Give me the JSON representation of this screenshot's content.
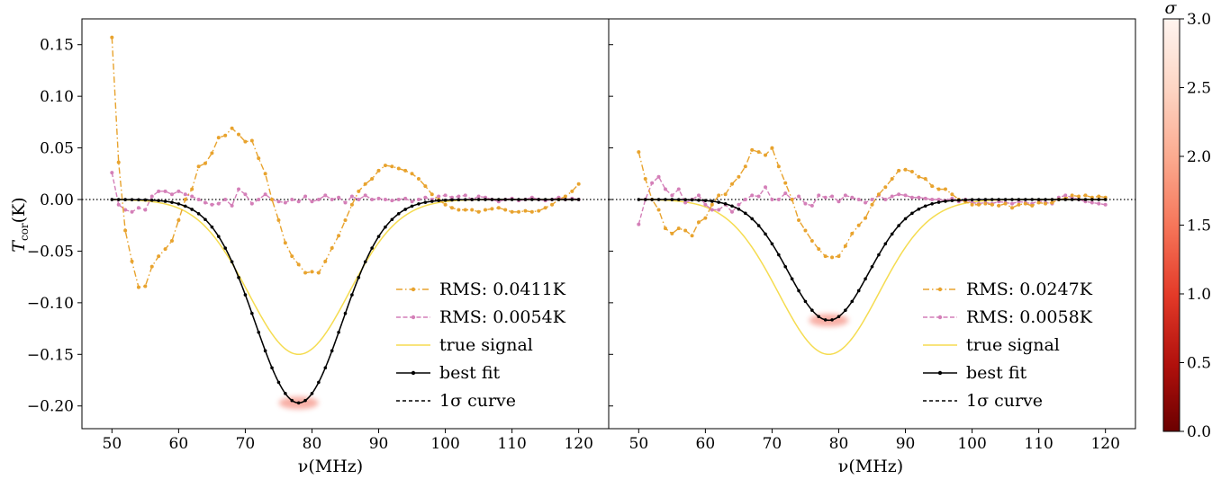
{
  "chart_data": {
    "type": "line",
    "shared": {
      "xlabel": "ν(MHz)",
      "ylabel_main": "T",
      "ylabel_sub": "cor",
      "ylabel_unit": "(K)",
      "xlim": [
        45.5,
        124.5
      ],
      "ylim": [
        -0.222,
        0.175
      ],
      "x_ticks": [
        50,
        60,
        70,
        80,
        90,
        100,
        110,
        120
      ],
      "y_ticks": [
        0.15,
        0.1,
        0.05,
        0.0,
        -0.05,
        -0.1,
        -0.15,
        -0.2
      ],
      "y_tick_labels": [
        "0.15",
        "0.10",
        "0.05",
        "0.00",
        "−0.05",
        "−0.10",
        "−0.15",
        "−0.20"
      ],
      "colorbar": {
        "label": "σ",
        "range": [
          0.0,
          3.0
        ],
        "ticks": [
          0.0,
          0.5,
          1.0,
          1.5,
          2.0,
          2.5,
          3.0
        ],
        "tick_labels": [
          "0.0",
          "0.5",
          "1.0",
          "1.5",
          "2.0",
          "2.5",
          "3.0"
        ],
        "colors": [
          "#6b0000",
          "#c01a10",
          "#ee4a33",
          "#f7866a",
          "#fcbba1",
          "#fde7dc",
          "#fff5f0"
        ]
      },
      "colors": {
        "series_a": "#e8a32e",
        "series_b": "#d47fb8",
        "true_signal": "#f5dc50",
        "best_fit": "#000000",
        "sigma_curve": "#000000",
        "band": "#f26d5b"
      }
    },
    "panels": [
      {
        "legend_position": "lower-right",
        "legend": [
          {
            "label": "RMS: 0.0411K",
            "style": "dashdot-dot",
            "color": "#e8a32e"
          },
          {
            "label": "RMS: 0.0054K",
            "style": "dash-dot",
            "color": "#d47fb8"
          },
          {
            "label": "true signal",
            "style": "solid",
            "color": "#f5dc50"
          },
          {
            "label": "best fit",
            "style": "solid-dot",
            "color": "#000000"
          },
          {
            "label": "1σ curve",
            "style": "dashed",
            "color": "#000000"
          }
        ],
        "true_signal": {
          "amplitude": -0.15,
          "center": 78.0,
          "width": 7.5
        },
        "best_fit": {
          "amplitude": -0.197,
          "center": 78.0,
          "width": 6.5
        },
        "series_a": {
          "x": [
            50,
            51,
            52,
            53,
            54,
            55,
            56,
            57,
            58,
            59,
            60,
            61,
            62,
            63,
            64,
            65,
            66,
            67,
            68,
            69,
            70,
            71,
            72,
            73,
            74,
            75,
            76,
            77,
            78,
            79,
            80,
            81,
            82,
            83,
            84,
            85,
            86,
            87,
            88,
            89,
            90,
            91,
            92,
            93,
            94,
            95,
            96,
            97,
            98,
            99,
            100,
            101,
            102,
            103,
            104,
            105,
            106,
            107,
            108,
            109,
            110,
            111,
            112,
            113,
            114,
            115,
            116,
            117,
            118,
            119,
            120
          ],
          "y": [
            0.157,
            0.036,
            -0.03,
            -0.06,
            -0.085,
            -0.084,
            -0.065,
            -0.055,
            -0.048,
            -0.04,
            -0.02,
            0.0,
            0.01,
            0.032,
            0.035,
            0.045,
            0.06,
            0.062,
            0.069,
            0.063,
            0.056,
            0.057,
            0.04,
            0.025,
            0.0,
            -0.02,
            -0.042,
            -0.055,
            -0.063,
            -0.071,
            -0.07,
            -0.071,
            -0.06,
            -0.047,
            -0.035,
            -0.02,
            -0.005,
            0.008,
            0.015,
            0.02,
            0.028,
            0.033,
            0.032,
            0.03,
            0.028,
            0.025,
            0.02,
            0.013,
            0.005,
            0.0,
            -0.005,
            -0.008,
            -0.01,
            -0.01,
            -0.01,
            -0.012,
            -0.01,
            -0.009,
            -0.008,
            -0.01,
            -0.012,
            -0.012,
            -0.011,
            -0.012,
            -0.011,
            -0.008,
            -0.005,
            0.0,
            0.003,
            0.008,
            0.015
          ]
        },
        "series_b": {
          "x": [
            50,
            51,
            52,
            53,
            54,
            55,
            56,
            57,
            58,
            59,
            60,
            61,
            62,
            63,
            64,
            65,
            66,
            67,
            68,
            69,
            70,
            71,
            72,
            73,
            74,
            75,
            76,
            77,
            78,
            79,
            80,
            81,
            82,
            83,
            84,
            85,
            86,
            87,
            88,
            89,
            90,
            91,
            92,
            93,
            94,
            95,
            96,
            97,
            98,
            99,
            100,
            101,
            102,
            103,
            104,
            105,
            106,
            107,
            108,
            109,
            110,
            111,
            112,
            113,
            114,
            115,
            116,
            117,
            118,
            119,
            120
          ],
          "y": [
            0.026,
            -0.005,
            -0.01,
            -0.012,
            -0.008,
            -0.01,
            0.003,
            0.008,
            0.008,
            0.005,
            0.008,
            0.005,
            0.003,
            0.0,
            -0.003,
            -0.005,
            -0.004,
            0.0,
            -0.006,
            0.01,
            0.005,
            -0.004,
            0.0,
            0.005,
            0.0,
            -0.002,
            -0.003,
            0.0,
            -0.002,
            0.003,
            -0.002,
            0.0,
            0.004,
            0.0,
            0.002,
            -0.003,
            0.003,
            0.0,
            0.004,
            0.0,
            0.001,
            0.0,
            -0.001,
            0.0,
            0.001,
            -0.002,
            0.0,
            0.002,
            0.0,
            0.003,
            0.004,
            0.002,
            0.003,
            0.004,
            0.0,
            0.003,
            0.002,
            0.0,
            -0.002,
            0.0,
            0.001,
            -0.001,
            0.0,
            0.002,
            0.0,
            -0.001,
            0.0,
            0.002,
            0.0,
            0.001,
            0.0
          ]
        }
      },
      {
        "legend_position": "lower-right",
        "legend": [
          {
            "label": "RMS: 0.0247K",
            "style": "dashdot-dot",
            "color": "#e8a32e"
          },
          {
            "label": "RMS: 0.0058K",
            "style": "dash-dot",
            "color": "#d47fb8"
          },
          {
            "label": "true signal",
            "style": "solid",
            "color": "#f5dc50"
          },
          {
            "label": "best fit",
            "style": "solid-dot",
            "color": "#000000"
          },
          {
            "label": "1σ curve",
            "style": "dashed",
            "color": "#000000"
          }
        ],
        "true_signal": {
          "amplitude": -0.15,
          "center": 78.5,
          "width": 7.5
        },
        "best_fit": {
          "amplitude": -0.117,
          "center": 78.5,
          "width": 6.0
        },
        "series_a": {
          "x": [
            50,
            51,
            52,
            53,
            54,
            55,
            56,
            57,
            58,
            59,
            60,
            61,
            62,
            63,
            64,
            65,
            66,
            67,
            68,
            69,
            70,
            71,
            72,
            73,
            74,
            75,
            76,
            77,
            78,
            79,
            80,
            81,
            82,
            83,
            84,
            85,
            86,
            87,
            88,
            89,
            90,
            91,
            92,
            93,
            94,
            95,
            96,
            97,
            98,
            99,
            100,
            101,
            102,
            103,
            104,
            105,
            106,
            107,
            108,
            109,
            110,
            111,
            112,
            113,
            114,
            115,
            116,
            117,
            118,
            119,
            120
          ],
          "y": [
            0.046,
            0.02,
            0.0,
            -0.01,
            -0.028,
            -0.033,
            -0.028,
            -0.03,
            -0.035,
            -0.022,
            -0.018,
            -0.005,
            0.004,
            0.005,
            0.015,
            0.022,
            0.032,
            0.048,
            0.046,
            0.043,
            0.05,
            0.032,
            0.016,
            0.0,
            -0.02,
            -0.03,
            -0.04,
            -0.048,
            -0.055,
            -0.056,
            -0.055,
            -0.045,
            -0.033,
            -0.025,
            -0.018,
            -0.005,
            0.005,
            0.012,
            0.02,
            0.028,
            0.029,
            0.027,
            0.022,
            0.02,
            0.013,
            0.01,
            0.01,
            0.005,
            0.0,
            -0.002,
            -0.005,
            -0.005,
            -0.004,
            -0.005,
            -0.006,
            -0.004,
            -0.008,
            -0.005,
            -0.004,
            -0.006,
            -0.003,
            -0.004,
            -0.003,
            0.0,
            0.001,
            0.004,
            0.003,
            0.004,
            0.002,
            0.003,
            0.002
          ]
        },
        "series_b": {
          "x": [
            50,
            51,
            52,
            53,
            54,
            55,
            56,
            57,
            58,
            59,
            60,
            61,
            62,
            63,
            64,
            65,
            66,
            67,
            68,
            69,
            70,
            71,
            72,
            73,
            74,
            75,
            76,
            77,
            78,
            79,
            80,
            81,
            82,
            83,
            84,
            85,
            86,
            87,
            88,
            89,
            90,
            91,
            92,
            93,
            94,
            95,
            96,
            97,
            98,
            99,
            100,
            101,
            102,
            103,
            104,
            105,
            106,
            107,
            108,
            109,
            110,
            111,
            112,
            113,
            114,
            115,
            116,
            117,
            118,
            119,
            120
          ],
          "y": [
            -0.024,
            0.0,
            0.016,
            0.022,
            0.01,
            0.004,
            0.01,
            -0.003,
            0.0,
            0.004,
            -0.005,
            -0.01,
            -0.01,
            -0.005,
            -0.012,
            -0.005,
            0.0,
            0.004,
            0.003,
            0.012,
            0.0,
            0.0,
            0.006,
            0.0,
            0.003,
            -0.004,
            -0.006,
            0.004,
            0.002,
            0.003,
            -0.002,
            0.004,
            0.002,
            0.0,
            -0.003,
            0.0,
            0.004,
            0.0,
            0.003,
            0.005,
            0.004,
            0.002,
            0.002,
            0.001,
            0.0,
            0.0,
            -0.001,
            0.001,
            -0.002,
            0.0,
            -0.003,
            -0.004,
            -0.003,
            -0.004,
            -0.002,
            -0.003,
            -0.004,
            -0.002,
            -0.003,
            -0.004,
            -0.001,
            -0.003,
            -0.004,
            0.002,
            0.004,
            0.002,
            0.0,
            -0.002,
            -0.003,
            -0.004,
            -0.005
          ]
        }
      }
    ]
  }
}
